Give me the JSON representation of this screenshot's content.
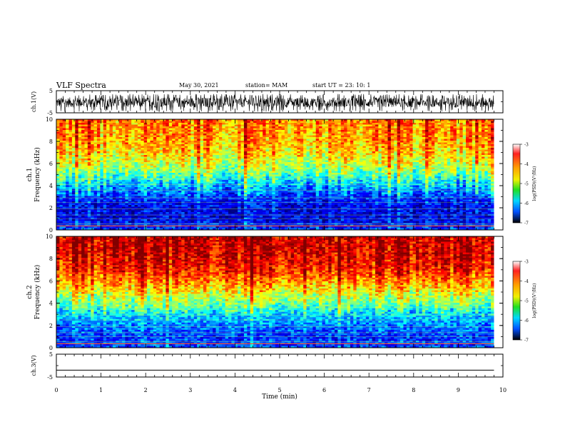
{
  "header": {
    "title": "VLF Spectra",
    "date": "May 30, 2021",
    "station": "station= MAM",
    "start": "start  UT  =   23: 10: 1"
  },
  "chart_data": [
    {
      "type": "line",
      "title": "",
      "ylabel": "ch.1(V)",
      "ylim": [
        -5,
        5
      ],
      "yticks": [
        "5",
        "-5"
      ],
      "description_values": {
        "x_range_min": [
          0,
          9.8
        ],
        "signal_range_v": [
          -4,
          3
        ]
      }
    },
    {
      "type": "heatmap",
      "ylabel": "ch.1\nFrequency (kHz)",
      "ylabel_line1": "ch.1",
      "ylabel_line2": "Frequency (kHz)",
      "ylim": [
        0,
        10
      ],
      "yticks": [
        "0",
        "2",
        "4",
        "6",
        "8",
        "10"
      ],
      "colorbar": {
        "label": "log(PSD)(V²/Hz)",
        "range": [
          -7,
          -3
        ],
        "ticks": [
          "-3",
          "-4",
          "-5",
          "-6",
          "-7"
        ]
      },
      "band_profile": {
        "freq_khz": [
          0,
          1,
          2,
          3,
          4,
          5,
          6,
          7,
          8,
          9,
          10
        ],
        "log_psd": [
          -6.3,
          -6.6,
          -6.6,
          -6.3,
          -5.8,
          -5.2,
          -4.7,
          -4.4,
          -4.2,
          -4.1,
          -4.0
        ]
      }
    },
    {
      "type": "heatmap",
      "ylabel_line1": "ch.2",
      "ylabel_line2": "Frequency (kHz)",
      "ylim": [
        0,
        10
      ],
      "yticks": [
        "0",
        "2",
        "4",
        "6",
        "8",
        "10"
      ],
      "colorbar": {
        "label": "log(PSD)(V²/Hz)",
        "range": [
          -7,
          -3
        ],
        "ticks": [
          "-3",
          "-4",
          "-5",
          "-6",
          "-7"
        ]
      },
      "band_profile": {
        "freq_khz": [
          0,
          1,
          2,
          3,
          4,
          5,
          6,
          7,
          8,
          9,
          10
        ],
        "log_psd": [
          -6.2,
          -6.3,
          -6.0,
          -5.6,
          -5.0,
          -4.5,
          -4.0,
          -3.6,
          -3.4,
          -3.3,
          -3.3
        ]
      }
    },
    {
      "type": "line",
      "ylabel": "ch.3(V)",
      "ylim": [
        -5,
        5
      ],
      "yticks": [
        "5",
        "-5"
      ],
      "x": [
        0,
        9.8
      ],
      "y": [
        -2,
        -2
      ],
      "xlabel": "Time  (min)",
      "xlim": [
        0,
        10
      ],
      "xticks": [
        "0",
        "1",
        "2",
        "3",
        "4",
        "5",
        "6",
        "7",
        "8",
        "9",
        "10"
      ]
    }
  ]
}
